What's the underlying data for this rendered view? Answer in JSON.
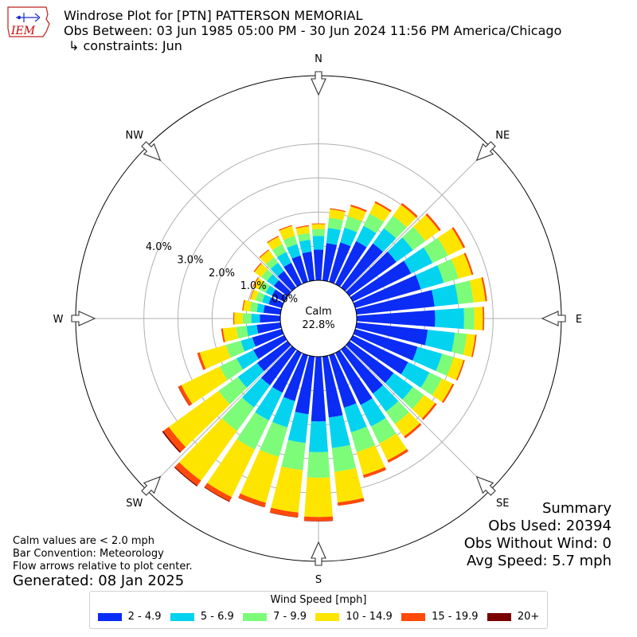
{
  "header": {
    "title": "Windrose Plot for [PTN] PATTERSON MEMORIAL",
    "subtitle": "Obs Between: 03 Jun 1985 05:00 PM - 30 Jun 2024 11:56 PM America/Chicago",
    "constraints": "↳ constraints: Jun"
  },
  "logo": {
    "text": "IEM",
    "icon": "iowa-state-logo-icon",
    "color": "#cc0000"
  },
  "summary": {
    "heading": "Summary",
    "obs_used": "Obs Used: 20394",
    "obs_without_wind": "Obs Without Wind: 0",
    "avg_speed": "Avg Speed: 5.7 mph"
  },
  "notes": {
    "calm_note": "Calm values are < 2.0 mph",
    "bar_convention": "Bar Convention: Meteorology",
    "flow_arrows": "Flow arrows relative to plot center."
  },
  "generated": "Generated: 08 Jan 2025",
  "legend": {
    "title": "Wind Speed [mph]",
    "items": [
      {
        "label": "2 - 4.9",
        "color": "#0a2cf5"
      },
      {
        "label": "5 - 6.9",
        "color": "#04d3f0"
      },
      {
        "label": "7 - 9.9",
        "color": "#7cfc78"
      },
      {
        "label": "10 - 14.9",
        "color": "#fde500"
      },
      {
        "label": "15 - 19.9",
        "color": "#ff4a0a"
      },
      {
        "label": "20+",
        "color": "#7a0000"
      }
    ]
  },
  "chart_data": {
    "type": "windrose",
    "calm_label": "Calm",
    "calm_value": "22.8%",
    "radial_ticks": [
      "0.0%",
      "1.0%",
      "2.0%",
      "3.0%",
      "4.0%"
    ],
    "radial_tick_values": [
      0,
      1,
      2,
      3,
      4
    ],
    "rmax": 6.0,
    "compass_labels": [
      "N",
      "NE",
      "E",
      "SE",
      "S",
      "SW",
      "W",
      "NW"
    ],
    "grid": true,
    "directions": [
      0,
      10,
      20,
      30,
      40,
      50,
      60,
      70,
      80,
      90,
      100,
      110,
      120,
      130,
      140,
      150,
      160,
      170,
      180,
      190,
      200,
      210,
      220,
      230,
      240,
      250,
      260,
      270,
      280,
      290,
      300,
      310,
      320,
      330,
      340,
      350
    ],
    "series": [
      {
        "name": "2 - 4.9",
        "values": [
          0.9,
          1.1,
          1.2,
          1.4,
          1.6,
          1.7,
          1.9,
          2.0,
          2.3,
          2.3,
          2.1,
          1.9,
          1.8,
          1.6,
          1.6,
          1.7,
          1.6,
          1.8,
          1.9,
          1.7,
          1.4,
          1.3,
          1.3,
          1.1,
          1.0,
          0.9,
          0.7,
          0.6,
          0.5,
          0.4,
          0.4,
          0.5,
          0.6,
          0.7,
          0.8,
          0.85
        ]
      },
      {
        "name": "5 - 6.9",
        "values": [
          0.4,
          0.45,
          0.45,
          0.5,
          0.55,
          0.6,
          0.7,
          0.7,
          0.7,
          0.85,
          0.8,
          0.75,
          0.7,
          0.7,
          0.65,
          0.7,
          0.75,
          0.9,
          0.9,
          0.85,
          0.8,
          0.9,
          0.8,
          0.7,
          0.55,
          0.35,
          0.3,
          0.25,
          0.2,
          0.2,
          0.2,
          0.25,
          0.3,
          0.35,
          0.35,
          0.35
        ]
      },
      {
        "name": "7 - 9.9",
        "values": [
          0.2,
          0.3,
          0.35,
          0.4,
          0.45,
          0.45,
          0.5,
          0.45,
          0.45,
          0.3,
          0.35,
          0.35,
          0.4,
          0.4,
          0.45,
          0.55,
          0.6,
          0.7,
          0.75,
          0.8,
          0.9,
          0.95,
          0.85,
          0.7,
          0.55,
          0.45,
          0.3,
          0.25,
          0.2,
          0.2,
          0.2,
          0.2,
          0.2,
          0.25,
          0.25,
          0.2
        ]
      },
      {
        "name": "10 - 14.9",
        "values": [
          0.15,
          0.25,
          0.3,
          0.35,
          0.4,
          0.5,
          0.5,
          0.4,
          0.35,
          0.25,
          0.25,
          0.3,
          0.35,
          0.4,
          0.45,
          0.55,
          0.7,
          0.9,
          1.15,
          1.25,
          1.4,
          1.55,
          1.8,
          1.8,
          1.25,
          0.8,
          0.4,
          0.25,
          0.2,
          0.15,
          0.2,
          0.25,
          0.25,
          0.25,
          0.3,
          0.2
        ]
      },
      {
        "name": "15 - 19.9",
        "values": [
          0.02,
          0.03,
          0.05,
          0.05,
          0.06,
          0.06,
          0.06,
          0.05,
          0.05,
          0.04,
          0.04,
          0.04,
          0.05,
          0.06,
          0.07,
          0.08,
          0.09,
          0.1,
          0.12,
          0.14,
          0.13,
          0.14,
          0.18,
          0.2,
          0.1,
          0.08,
          0.05,
          0.03,
          0.03,
          0.02,
          0.03,
          0.03,
          0.03,
          0.03,
          0.03,
          0.03
        ]
      },
      {
        "name": "20+",
        "values": [
          0.0,
          0.0,
          0.0,
          0.0,
          0.0,
          0.0,
          0.0,
          0.0,
          0.0,
          0.0,
          0.0,
          0.0,
          0.0,
          0.0,
          0.0,
          0.0,
          0.0,
          0.0,
          0.01,
          0.01,
          0.01,
          0.02,
          0.03,
          0.04,
          0.01,
          0.0,
          0.0,
          0.0,
          0.0,
          0.0,
          0.0,
          0.0,
          0.0,
          0.0,
          0.0,
          0.0
        ]
      }
    ]
  }
}
